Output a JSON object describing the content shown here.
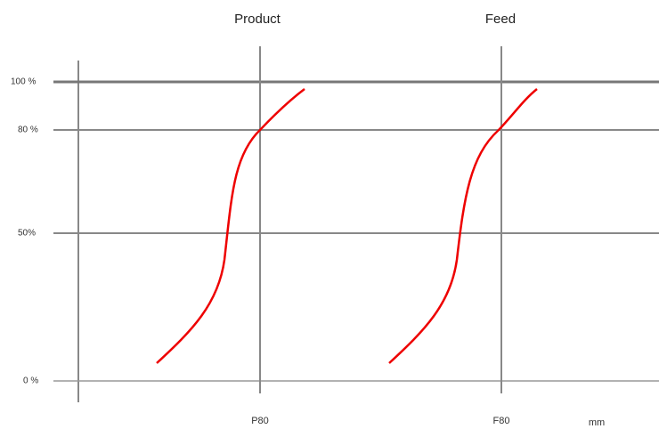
{
  "headings": [
    "Product",
    "Feed"
  ],
  "y_labels": [
    "100 %",
    "80 %",
    "50%",
    "0 %"
  ],
  "x_labels": [
    "P80",
    "F80"
  ],
  "unit": "mm"
}
